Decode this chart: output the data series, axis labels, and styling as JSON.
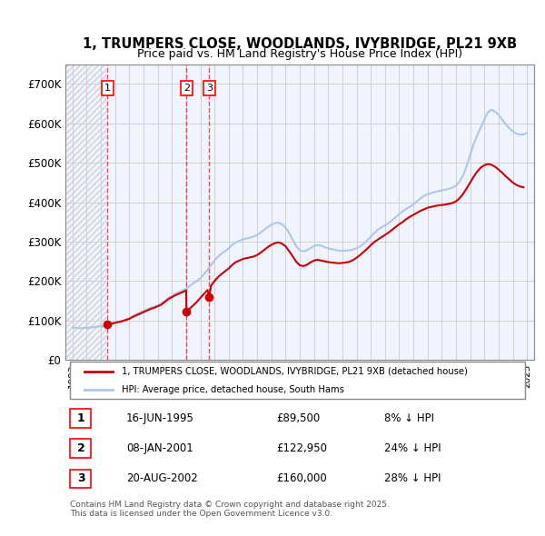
{
  "title_line1": "1, TRUMPERS CLOSE, WOODLANDS, IVYBRIDGE, PL21 9XB",
  "title_line2": "Price paid vs. HM Land Registry's House Price Index (HPI)",
  "ylabel": "",
  "xlabel": "",
  "ylim": [
    0,
    750000
  ],
  "yticks": [
    0,
    100000,
    200000,
    300000,
    400000,
    500000,
    600000,
    700000
  ],
  "ytick_labels": [
    "£0",
    "£100K",
    "£200K",
    "£300K",
    "£400K",
    "£500K",
    "£600K",
    "£700K"
  ],
  "xlim_start": 1992.5,
  "xlim_end": 2025.5,
  "xticks": [
    1993,
    1994,
    1995,
    1996,
    1997,
    1998,
    1999,
    2000,
    2001,
    2002,
    2003,
    2004,
    2005,
    2006,
    2007,
    2008,
    2009,
    2010,
    2011,
    2012,
    2013,
    2014,
    2015,
    2016,
    2017,
    2018,
    2019,
    2020,
    2021,
    2022,
    2023,
    2024,
    2025
  ],
  "hpi_color": "#aec6e8",
  "price_color": "#cc0000",
  "hatch_color": "#c0c0c0",
  "grid_color": "#d0d0d0",
  "background_color": "#f0f4ff",
  "transactions": [
    {
      "date": 1995.46,
      "price": 89500,
      "label": "1"
    },
    {
      "date": 2001.02,
      "price": 122950,
      "label": "2"
    },
    {
      "date": 2002.63,
      "price": 160000,
      "label": "3"
    }
  ],
  "legend_line1": "1, TRUMPERS CLOSE, WOODLANDS, IVYBRIDGE, PL21 9XB (detached house)",
  "legend_line2": "HPI: Average price, detached house, South Hams",
  "table_rows": [
    {
      "num": "1",
      "date": "16-JUN-1995",
      "price": "£89,500",
      "note": "8% ↓ HPI"
    },
    {
      "num": "2",
      "date": "08-JAN-2001",
      "price": "£122,950",
      "note": "24% ↓ HPI"
    },
    {
      "num": "3",
      "date": "20-AUG-2002",
      "price": "£160,000",
      "note": "28% ↓ HPI"
    }
  ],
  "footer": "Contains HM Land Registry data © Crown copyright and database right 2025.\nThis data is licensed under the Open Government Licence v3.0.",
  "hpi_data_x": [
    1993.0,
    1993.25,
    1993.5,
    1993.75,
    1994.0,
    1994.25,
    1994.5,
    1994.75,
    1995.0,
    1995.25,
    1995.5,
    1995.75,
    1996.0,
    1996.25,
    1996.5,
    1996.75,
    1997.0,
    1997.25,
    1997.5,
    1997.75,
    1998.0,
    1998.25,
    1998.5,
    1998.75,
    1999.0,
    1999.25,
    1999.5,
    1999.75,
    2000.0,
    2000.25,
    2000.5,
    2000.75,
    2001.0,
    2001.25,
    2001.5,
    2001.75,
    2002.0,
    2002.25,
    2002.5,
    2002.75,
    2003.0,
    2003.25,
    2003.5,
    2003.75,
    2004.0,
    2004.25,
    2004.5,
    2004.75,
    2005.0,
    2005.25,
    2005.5,
    2005.75,
    2006.0,
    2006.25,
    2006.5,
    2006.75,
    2007.0,
    2007.25,
    2007.5,
    2007.75,
    2008.0,
    2008.25,
    2008.5,
    2008.75,
    2009.0,
    2009.25,
    2009.5,
    2009.75,
    2010.0,
    2010.25,
    2010.5,
    2010.75,
    2011.0,
    2011.25,
    2011.5,
    2011.75,
    2012.0,
    2012.25,
    2012.5,
    2012.75,
    2013.0,
    2013.25,
    2013.5,
    2013.75,
    2014.0,
    2014.25,
    2014.5,
    2014.75,
    2015.0,
    2015.25,
    2015.5,
    2015.75,
    2016.0,
    2016.25,
    2016.5,
    2016.75,
    2017.0,
    2017.25,
    2017.5,
    2017.75,
    2018.0,
    2018.25,
    2018.5,
    2018.75,
    2019.0,
    2019.25,
    2019.5,
    2019.75,
    2020.0,
    2020.25,
    2020.5,
    2020.75,
    2021.0,
    2021.25,
    2021.5,
    2021.75,
    2022.0,
    2022.25,
    2022.5,
    2022.75,
    2023.0,
    2023.25,
    2023.5,
    2023.75,
    2024.0,
    2024.25,
    2024.5,
    2024.75,
    2025.0
  ],
  "hpi_data_y": [
    82000,
    81000,
    80000,
    80500,
    81000,
    82000,
    83000,
    84000,
    85000,
    86000,
    88000,
    90000,
    93000,
    96000,
    99000,
    102000,
    106000,
    111000,
    116000,
    120000,
    124000,
    128000,
    132000,
    135000,
    138000,
    143000,
    150000,
    157000,
    163000,
    168000,
    172000,
    176000,
    181000,
    187000,
    194000,
    200000,
    207000,
    217000,
    228000,
    240000,
    252000,
    262000,
    270000,
    276000,
    283000,
    292000,
    298000,
    302000,
    306000,
    308000,
    310000,
    313000,
    317000,
    323000,
    330000,
    337000,
    343000,
    347000,
    348000,
    344000,
    336000,
    322000,
    305000,
    289000,
    278000,
    275000,
    278000,
    283000,
    289000,
    291000,
    290000,
    286000,
    283000,
    281000,
    279000,
    277000,
    277000,
    277000,
    278000,
    280000,
    283000,
    288000,
    295000,
    303000,
    312000,
    322000,
    330000,
    336000,
    341000,
    347000,
    354000,
    362000,
    370000,
    377000,
    383000,
    388000,
    394000,
    402000,
    410000,
    416000,
    420000,
    423000,
    426000,
    428000,
    430000,
    432000,
    434000,
    437000,
    442000,
    452000,
    468000,
    492000,
    520000,
    548000,
    570000,
    590000,
    610000,
    628000,
    635000,
    630000,
    622000,
    610000,
    598000,
    588000,
    580000,
    574000,
    572000,
    572000,
    576000
  ],
  "price_line_x": [
    1993.0,
    1993.25,
    1993.5,
    1993.75,
    1994.0,
    1994.25,
    1994.5,
    1994.75,
    1995.0,
    1995.25,
    1995.46,
    1995.5,
    1995.75,
    1996.0,
    1996.25,
    1996.5,
    1996.75,
    1997.0,
    1997.25,
    1997.5,
    1997.75,
    1998.0,
    1998.25,
    1998.5,
    1998.75,
    1999.0,
    1999.25,
    1999.5,
    1999.75,
    2000.0,
    2000.25,
    2000.5,
    2000.75,
    2001.0,
    2001.02,
    2001.25,
    2001.5,
    2001.75,
    2002.0,
    2002.25,
    2002.5,
    2002.63,
    2002.75,
    2003.0,
    2003.25,
    2003.5,
    2003.75,
    2004.0,
    2004.25,
    2004.5,
    2004.75,
    2005.0,
    2005.25,
    2005.5,
    2005.75,
    2006.0,
    2006.25,
    2006.5,
    2006.75,
    2007.0,
    2007.25,
    2007.5,
    2007.75,
    2008.0,
    2008.25,
    2008.5,
    2008.75,
    2009.0,
    2009.25,
    2009.5,
    2009.75,
    2010.0,
    2010.25,
    2010.5,
    2010.75,
    2011.0,
    2011.25,
    2011.5,
    2011.75,
    2012.0,
    2012.25,
    2012.5,
    2012.75,
    2013.0,
    2013.25,
    2013.5,
    2013.75,
    2014.0,
    2014.25,
    2014.5,
    2014.75,
    2015.0,
    2015.25,
    2015.5,
    2015.75,
    2016.0,
    2016.25,
    2016.5,
    2016.75,
    2017.0,
    2017.25,
    2017.5,
    2017.75,
    2018.0,
    2018.25,
    2018.5,
    2018.75,
    2019.0,
    2019.25,
    2019.5,
    2019.75,
    2020.0,
    2020.25,
    2020.5,
    2020.75,
    2021.0,
    2021.25,
    2021.5,
    2021.75,
    2022.0,
    2022.25,
    2022.5,
    2022.75,
    2023.0,
    2023.25,
    2023.5,
    2023.75,
    2024.0,
    2024.25,
    2024.5,
    2024.75,
    2025.0
  ],
  "price_line_y": [
    null,
    null,
    null,
    null,
    null,
    null,
    null,
    null,
    null,
    null,
    89500,
    90000,
    92000,
    94000,
    96000,
    98000,
    101000,
    104000,
    109000,
    113000,
    117000,
    121000,
    125000,
    129000,
    132000,
    136000,
    140000,
    147000,
    154000,
    159000,
    164000,
    168000,
    172000,
    176000,
    122950,
    130000,
    138000,
    147000,
    157000,
    167000,
    177000,
    160000,
    188000,
    200000,
    210000,
    218000,
    225000,
    232000,
    241000,
    248000,
    252000,
    256000,
    258000,
    260000,
    262000,
    266000,
    272000,
    279000,
    286000,
    292000,
    296000,
    298000,
    295000,
    288000,
    276000,
    263000,
    249000,
    240000,
    238000,
    241000,
    247000,
    252000,
    254000,
    252000,
    250000,
    248000,
    247000,
    246000,
    245000,
    246000,
    247000,
    249000,
    253000,
    259000,
    266000,
    274000,
    282000,
    291000,
    299000,
    305000,
    311000,
    317000,
    323000,
    330000,
    337000,
    344000,
    350000,
    357000,
    363000,
    368000,
    373000,
    378000,
    382000,
    386000,
    388000,
    390000,
    392000,
    393000,
    394000,
    396000,
    398000,
    402000,
    410000,
    421000,
    435000,
    450000,
    465000,
    478000,
    488000,
    494000,
    497000,
    495000,
    490000,
    483000,
    475000,
    466000,
    458000,
    450000,
    444000,
    440000,
    438000
  ]
}
